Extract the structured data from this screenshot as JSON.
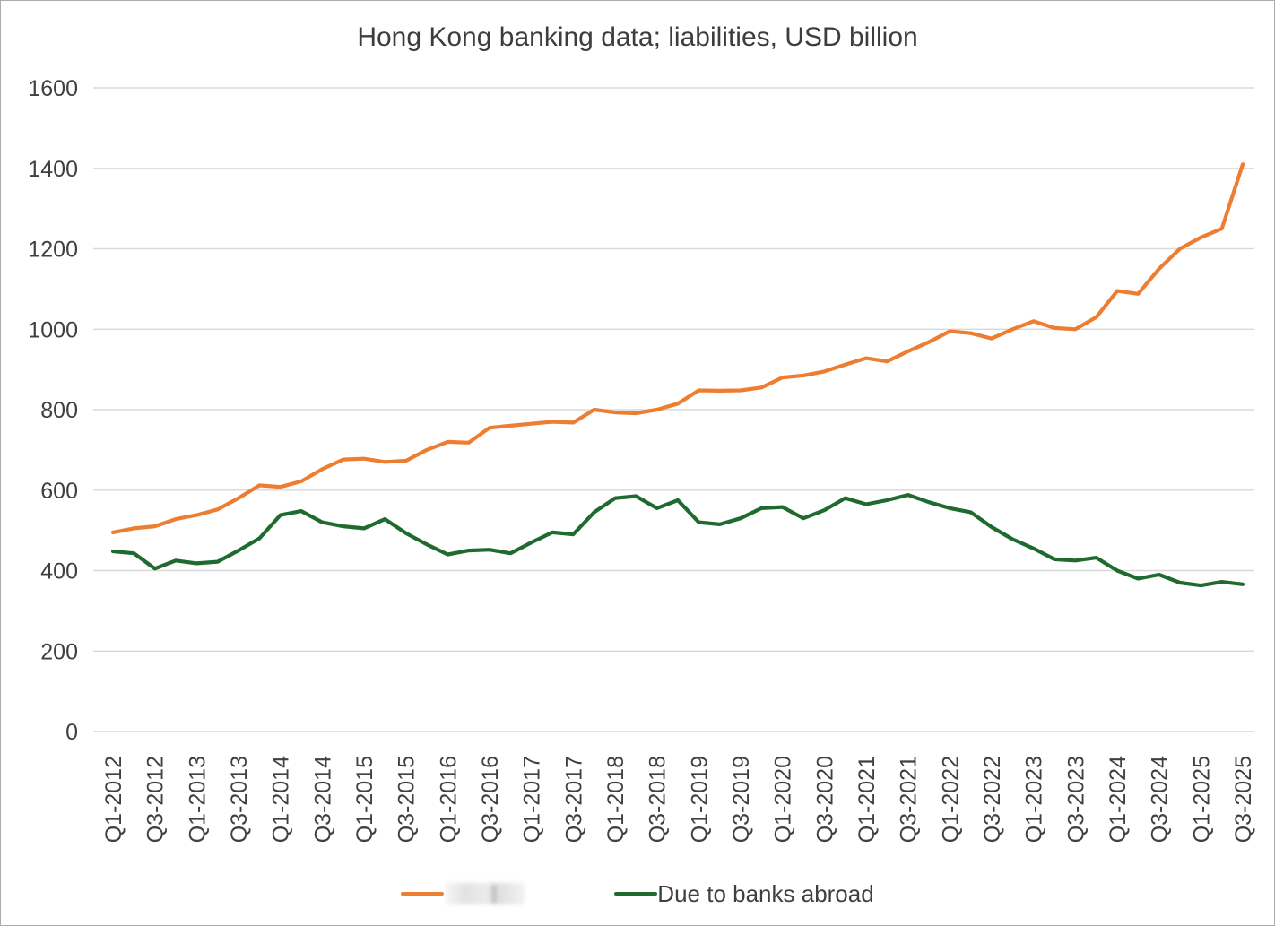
{
  "chart_data": {
    "type": "line",
    "title": "Hong Kong banking data; liabilities, USD billion",
    "xlabel": "",
    "ylabel": "",
    "ylim": [
      0,
      1600
    ],
    "ytick_interval": 200,
    "grid": true,
    "legend_position": "bottom",
    "x_tick_step": 2,
    "colors": {
      "grid": "#d9d9d9",
      "text": "#404040",
      "orange": "#ED7D31",
      "green": "#1F6B2F"
    },
    "x": [
      "Q1-2012",
      "Q2-2012",
      "Q3-2012",
      "Q4-2012",
      "Q1-2013",
      "Q2-2013",
      "Q3-2013",
      "Q4-2013",
      "Q1-2014",
      "Q2-2014",
      "Q3-2014",
      "Q4-2014",
      "Q1-2015",
      "Q2-2015",
      "Q3-2015",
      "Q4-2015",
      "Q1-2016",
      "Q2-2016",
      "Q3-2016",
      "Q4-2016",
      "Q1-2017",
      "Q2-2017",
      "Q3-2017",
      "Q4-2017",
      "Q1-2018",
      "Q2-2018",
      "Q3-2018",
      "Q4-2018",
      "Q1-2019",
      "Q2-2019",
      "Q3-2019",
      "Q4-2019",
      "Q1-2020",
      "Q2-2020",
      "Q3-2020",
      "Q4-2020",
      "Q1-2021",
      "Q2-2021",
      "Q3-2021",
      "Q4-2021",
      "Q1-2022",
      "Q2-2022",
      "Q3-2022",
      "Q4-2022",
      "Q1-2023",
      "Q2-2023",
      "Q3-2023",
      "Q4-2023",
      "Q1-2024",
      "Q2-2024",
      "Q3-2024",
      "Q4-2024",
      "Q1-2025",
      "Q2-2025",
      "Q3-2025"
    ],
    "series": [
      {
        "name": "",
        "label_redacted": true,
        "color": "#ED7D31",
        "values": [
          495,
          505,
          510,
          528,
          538,
          552,
          580,
          612,
          608,
          622,
          652,
          676,
          678,
          670,
          673,
          700,
          720,
          718,
          755,
          760,
          765,
          770,
          768,
          800,
          793,
          791,
          800,
          815,
          848,
          847,
          848,
          855,
          880,
          885,
          895,
          912,
          928,
          920,
          945,
          968,
          995,
          990,
          977,
          1000,
          1020,
          1003,
          1000,
          1030,
          1095,
          1088,
          1150,
          1200,
          1228,
          1250,
          1410
        ]
      },
      {
        "name": "Due to banks abroad",
        "label_redacted": false,
        "color": "#1F6B2F",
        "values": [
          448,
          443,
          405,
          425,
          418,
          422,
          450,
          480,
          538,
          548,
          520,
          510,
          505,
          528,
          493,
          465,
          440,
          450,
          452,
          443,
          470,
          495,
          490,
          545,
          580,
          585,
          555,
          575,
          520,
          515,
          530,
          555,
          558,
          530,
          550,
          580,
          565,
          575,
          588,
          570,
          555,
          545,
          508,
          478,
          455,
          428,
          425,
          432,
          400,
          380,
          390,
          370,
          363,
          372,
          366
        ]
      }
    ],
    "y_tick_labels": [
      "0",
      "200",
      "400",
      "600",
      "800",
      "1000",
      "1200",
      "1400",
      "1600"
    ]
  }
}
